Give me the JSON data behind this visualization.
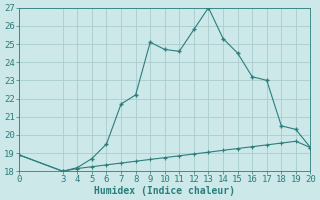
{
  "xlabel": "Humidex (Indice chaleur)",
  "background_color": "#cce8e8",
  "grid_color": "#aacccc",
  "line_color": "#2d7d7d",
  "xlim": [
    0,
    20
  ],
  "ylim": [
    18,
    27
  ],
  "xticks": [
    0,
    3,
    4,
    5,
    6,
    7,
    8,
    9,
    10,
    11,
    12,
    13,
    14,
    15,
    16,
    17,
    18,
    19,
    20
  ],
  "yticks": [
    18,
    19,
    20,
    21,
    22,
    23,
    24,
    25,
    26,
    27
  ],
  "line1_x": [
    0,
    3,
    4,
    5,
    6,
    7,
    8,
    9,
    10,
    11,
    12,
    13,
    14,
    15,
    16,
    17,
    18,
    19,
    20
  ],
  "line1_y": [
    18.9,
    18.0,
    18.2,
    18.7,
    19.5,
    21.7,
    22.2,
    25.1,
    24.7,
    24.6,
    25.8,
    27.0,
    25.3,
    24.5,
    23.2,
    23.0,
    20.5,
    20.3,
    19.3
  ],
  "line2_x": [
    0,
    3,
    4,
    5,
    6,
    7,
    8,
    9,
    10,
    11,
    12,
    13,
    14,
    15,
    16,
    17,
    18,
    19,
    20
  ],
  "line2_y": [
    18.9,
    18.0,
    18.15,
    18.25,
    18.35,
    18.45,
    18.55,
    18.65,
    18.75,
    18.85,
    18.95,
    19.05,
    19.15,
    19.25,
    19.35,
    19.45,
    19.55,
    19.65,
    19.3
  ],
  "font_color": "#2d7d7d",
  "xlabel_fontsize": 7,
  "tick_fontsize": 6.5
}
